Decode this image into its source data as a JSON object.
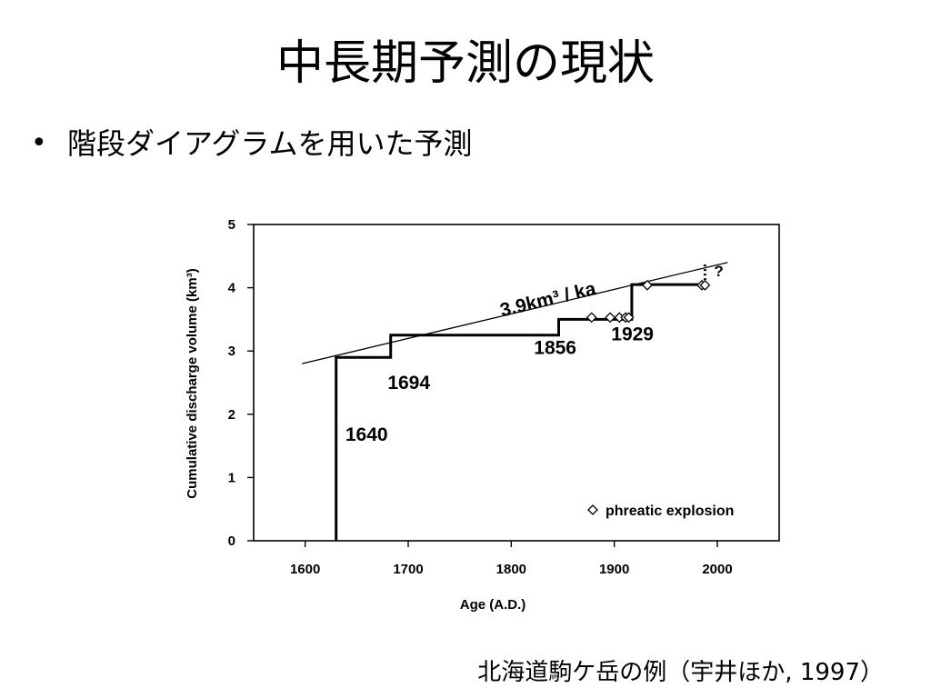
{
  "slide": {
    "title": "中長期予測の現状",
    "bullet": "階段ダイアグラムを用いた予測",
    "caption": "北海道駒ケ岳の例（宇井ほか, 1997）"
  },
  "chart_data": {
    "type": "line",
    "xlabel": "Age (A.D.)",
    "ylabel": "Cumulative discharge volume (km³)",
    "xlim": [
      1550,
      2060
    ],
    "ylim": [
      0,
      5
    ],
    "x_ticks": [
      1600,
      1700,
      1800,
      1900,
      2000
    ],
    "y_ticks": [
      0,
      1,
      2,
      3,
      4,
      5
    ],
    "grid": false,
    "series": [
      {
        "style": "step",
        "points": [
          [
            1630,
            0
          ],
          [
            1630,
            2.9
          ],
          [
            1683,
            2.9
          ],
          [
            1683,
            3.25
          ],
          [
            1846,
            3.25
          ],
          [
            1846,
            3.5
          ],
          [
            1917,
            3.5
          ],
          [
            1917,
            4.05
          ],
          [
            1988,
            4.05
          ]
        ]
      },
      {
        "style": "trend",
        "label": "3.9km³ / ka",
        "points": [
          [
            1597,
            2.8
          ],
          [
            2010,
            4.4
          ]
        ]
      }
    ],
    "projection": {
      "x": 1988,
      "y_from": 4.05,
      "y_to": 4.4,
      "label": "?"
    },
    "phreatic_explosions": [
      [
        1878,
        3.53
      ],
      [
        1896,
        3.53
      ],
      [
        1905,
        3.53
      ],
      [
        1911,
        3.53
      ],
      [
        1914,
        3.53
      ],
      [
        1932,
        4.04
      ],
      [
        1985,
        4.04
      ],
      [
        1988,
        4.04
      ]
    ],
    "annotations": [
      {
        "text": "1640",
        "x": 1639,
        "y": 1.58
      },
      {
        "text": "1694",
        "x": 1680,
        "y": 2.4
      },
      {
        "text": "1856",
        "x": 1822,
        "y": 2.95
      },
      {
        "text": "1929",
        "x": 1897,
        "y": 3.17
      }
    ],
    "legend": {
      "position": "bottom-right",
      "entries": [
        {
          "marker": "diamond",
          "label": "phreatic explosion"
        }
      ]
    }
  }
}
